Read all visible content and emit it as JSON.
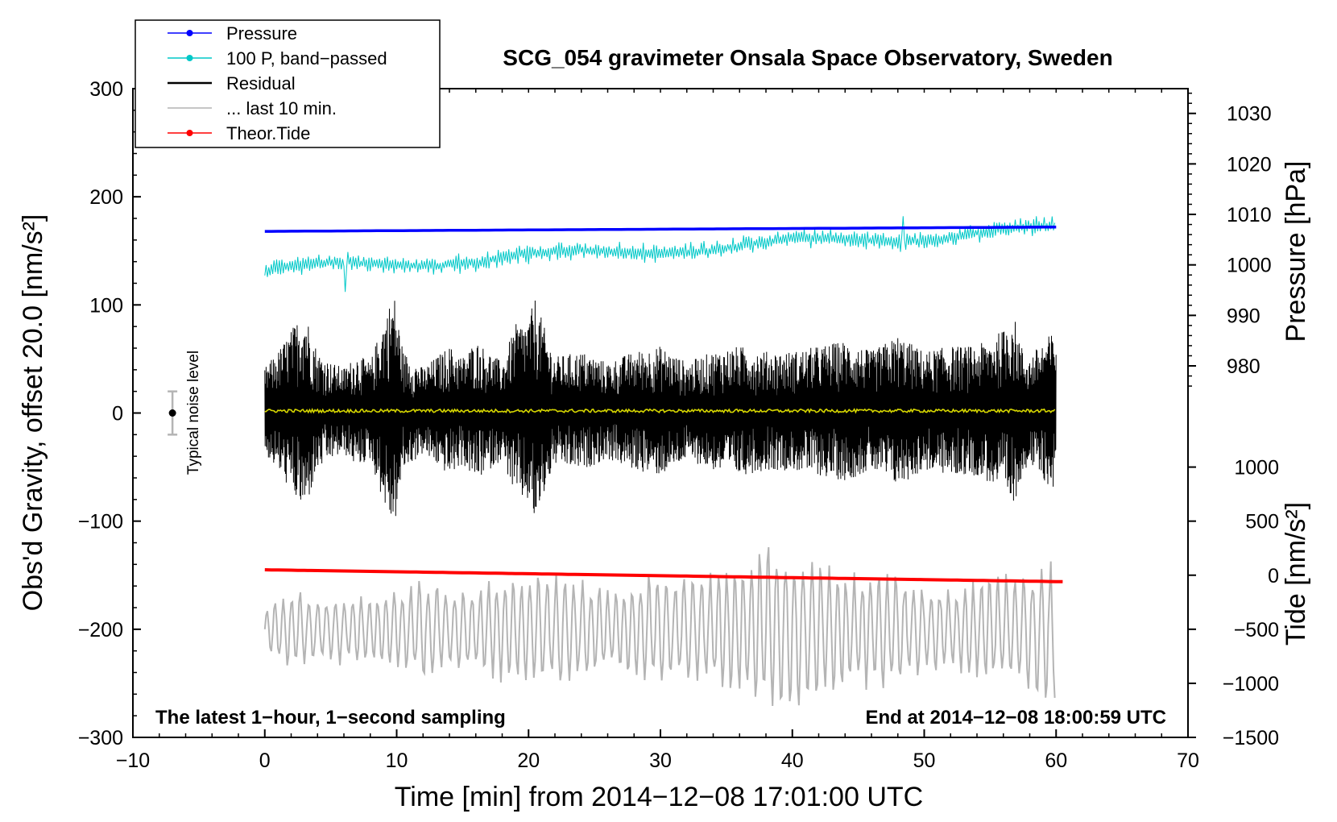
{
  "chart_data": {
    "type": "line",
    "title": "SCG_054 gravimeter Onsala Space Observatory, Sweden",
    "xlabel": "Time [min] from 2014−12−08 17:01:00 UTC",
    "ylabel_left": "Obs'd Gravity, offset 20.0 [nm/s²]",
    "ylabel_right_pressure": "Pressure [hPa]",
    "ylabel_right_tide": "Tide [nm/s²]",
    "xlim": [
      -10,
      70
    ],
    "ylim": [
      -300,
      300
    ],
    "x_ticks": [
      -10,
      0,
      10,
      20,
      30,
      40,
      50,
      60,
      70
    ],
    "x_tick_labels": [
      "−10",
      "0",
      "10",
      "20",
      "30",
      "40",
      "50",
      "60",
      "70"
    ],
    "y_ticks": [
      -300,
      -200,
      -100,
      0,
      100,
      200,
      300
    ],
    "y_tick_labels": [
      "−300",
      "−200",
      "−100",
      "0",
      "100",
      "200",
      "300"
    ],
    "pressure_ticks": [
      980,
      990,
      1000,
      1010,
      1020,
      1030
    ],
    "pressure_tick_labels": [
      "980",
      "990",
      "1000",
      "1010",
      "1020",
      "1030"
    ],
    "pressure_axis_map": {
      "pressure_at_y0": 928.6,
      "units_per_hpa": 5.59
    },
    "tide_ticks": [
      -1500,
      -1000,
      -500,
      0,
      500,
      1000
    ],
    "tide_tick_labels": [
      "−1500",
      "−1000",
      "−500",
      "0",
      "500",
      "1000"
    ],
    "tide_axis_map": {
      "tide_at_y0": 3675,
      "units_per_nms2": 0.0819
    },
    "legend": [
      {
        "label": "Pressure",
        "color": "#0000ff",
        "marker": true
      },
      {
        "label": "100 P, band−passed",
        "color": "#00c8c8",
        "marker": true
      },
      {
        "label": "Residual",
        "color": "#000000",
        "marker": false
      },
      {
        "label": "... last 10 min.",
        "color": "#b4b4b4",
        "marker": false
      },
      {
        "label": "Theor.Tide",
        "color": "#ff0000",
        "marker": true
      }
    ],
    "legend_position": "top-left",
    "annotations": {
      "left_bottom": "The latest 1−hour, 1−second sampling",
      "right_bottom": "End at 2014−12−08 18:00:59 UTC",
      "noise": "Typical noise level",
      "noise_level": {
        "x": -7,
        "y": 0,
        "ymin": -20,
        "ymax": 20
      }
    },
    "series": [
      {
        "name": "Pressure",
        "color": "#0000ff",
        "unit": "hPa",
        "x_range": [
          0,
          60
        ],
        "start": 1006.5,
        "end": 1007.3
      },
      {
        "name": "100 P, band−passed",
        "color": "#00c8c8",
        "x_range": [
          0,
          60
        ],
        "start": 132,
        "end": 170,
        "amplitude": 7,
        "spikes": [
          {
            "x": 6.1,
            "y": 112
          },
          {
            "x": 48.4,
            "y": 182
          }
        ]
      },
      {
        "name": "Residual",
        "color": "#000000",
        "x_range": [
          0,
          60
        ],
        "center": 2,
        "envelope_points": [
          [
            0,
            40
          ],
          [
            1,
            55
          ],
          [
            2,
            75
          ],
          [
            3,
            95
          ],
          [
            4,
            55
          ],
          [
            5,
            45
          ],
          [
            6,
            40
          ],
          [
            7,
            52
          ],
          [
            8,
            45
          ],
          [
            9,
            85
          ],
          [
            9.8,
            110
          ],
          [
            10.5,
            55
          ],
          [
            11,
            50
          ],
          [
            12,
            40
          ],
          [
            13,
            50
          ],
          [
            14,
            60
          ],
          [
            15,
            50
          ],
          [
            16,
            65
          ],
          [
            17,
            55
          ],
          [
            18,
            45
          ],
          [
            19,
            80
          ],
          [
            20,
            85
          ],
          [
            20.5,
            105
          ],
          [
            21.5,
            65
          ],
          [
            22,
            50
          ],
          [
            24,
            55
          ],
          [
            26,
            45
          ],
          [
            28,
            55
          ],
          [
            30,
            60
          ],
          [
            32,
            45
          ],
          [
            34,
            55
          ],
          [
            36,
            60
          ],
          [
            38,
            55
          ],
          [
            40,
            55
          ],
          [
            42,
            60
          ],
          [
            44,
            65
          ],
          [
            46,
            55
          ],
          [
            48,
            70
          ],
          [
            50,
            55
          ],
          [
            52,
            60
          ],
          [
            54,
            60
          ],
          [
            56,
            75
          ],
          [
            56.7,
            93
          ],
          [
            57.5,
            55
          ],
          [
            58,
            50
          ],
          [
            59,
            65
          ],
          [
            60,
            75
          ]
        ]
      },
      {
        "name": "Theor.Tide",
        "color": "#ff0000",
        "unit": "nm/s²",
        "x_range": [
          0,
          60.5
        ],
        "start": -145,
        "end": -156
      },
      {
        "name": "... last 10 min.",
        "color": "#b4b4b4",
        "x_range": [
          0,
          60
        ],
        "center": -200,
        "envelope_points": [
          [
            0,
            20
          ],
          [
            2,
            40
          ],
          [
            4,
            30
          ],
          [
            6,
            35
          ],
          [
            8,
            35
          ],
          [
            10,
            40
          ],
          [
            12,
            50
          ],
          [
            14,
            40
          ],
          [
            16,
            45
          ],
          [
            18,
            50
          ],
          [
            20,
            55
          ],
          [
            22,
            55
          ],
          [
            24,
            50
          ],
          [
            26,
            40
          ],
          [
            28,
            50
          ],
          [
            30,
            55
          ],
          [
            32,
            50
          ],
          [
            34,
            55
          ],
          [
            36,
            70
          ],
          [
            38,
            85
          ],
          [
            39,
            95
          ],
          [
            40,
            80
          ],
          [
            42,
            70
          ],
          [
            44,
            55
          ],
          [
            46,
            60
          ],
          [
            48,
            55
          ],
          [
            50,
            45
          ],
          [
            52,
            40
          ],
          [
            54,
            50
          ],
          [
            56,
            55
          ],
          [
            58,
            60
          ],
          [
            60,
            70
          ]
        ]
      }
    ]
  }
}
